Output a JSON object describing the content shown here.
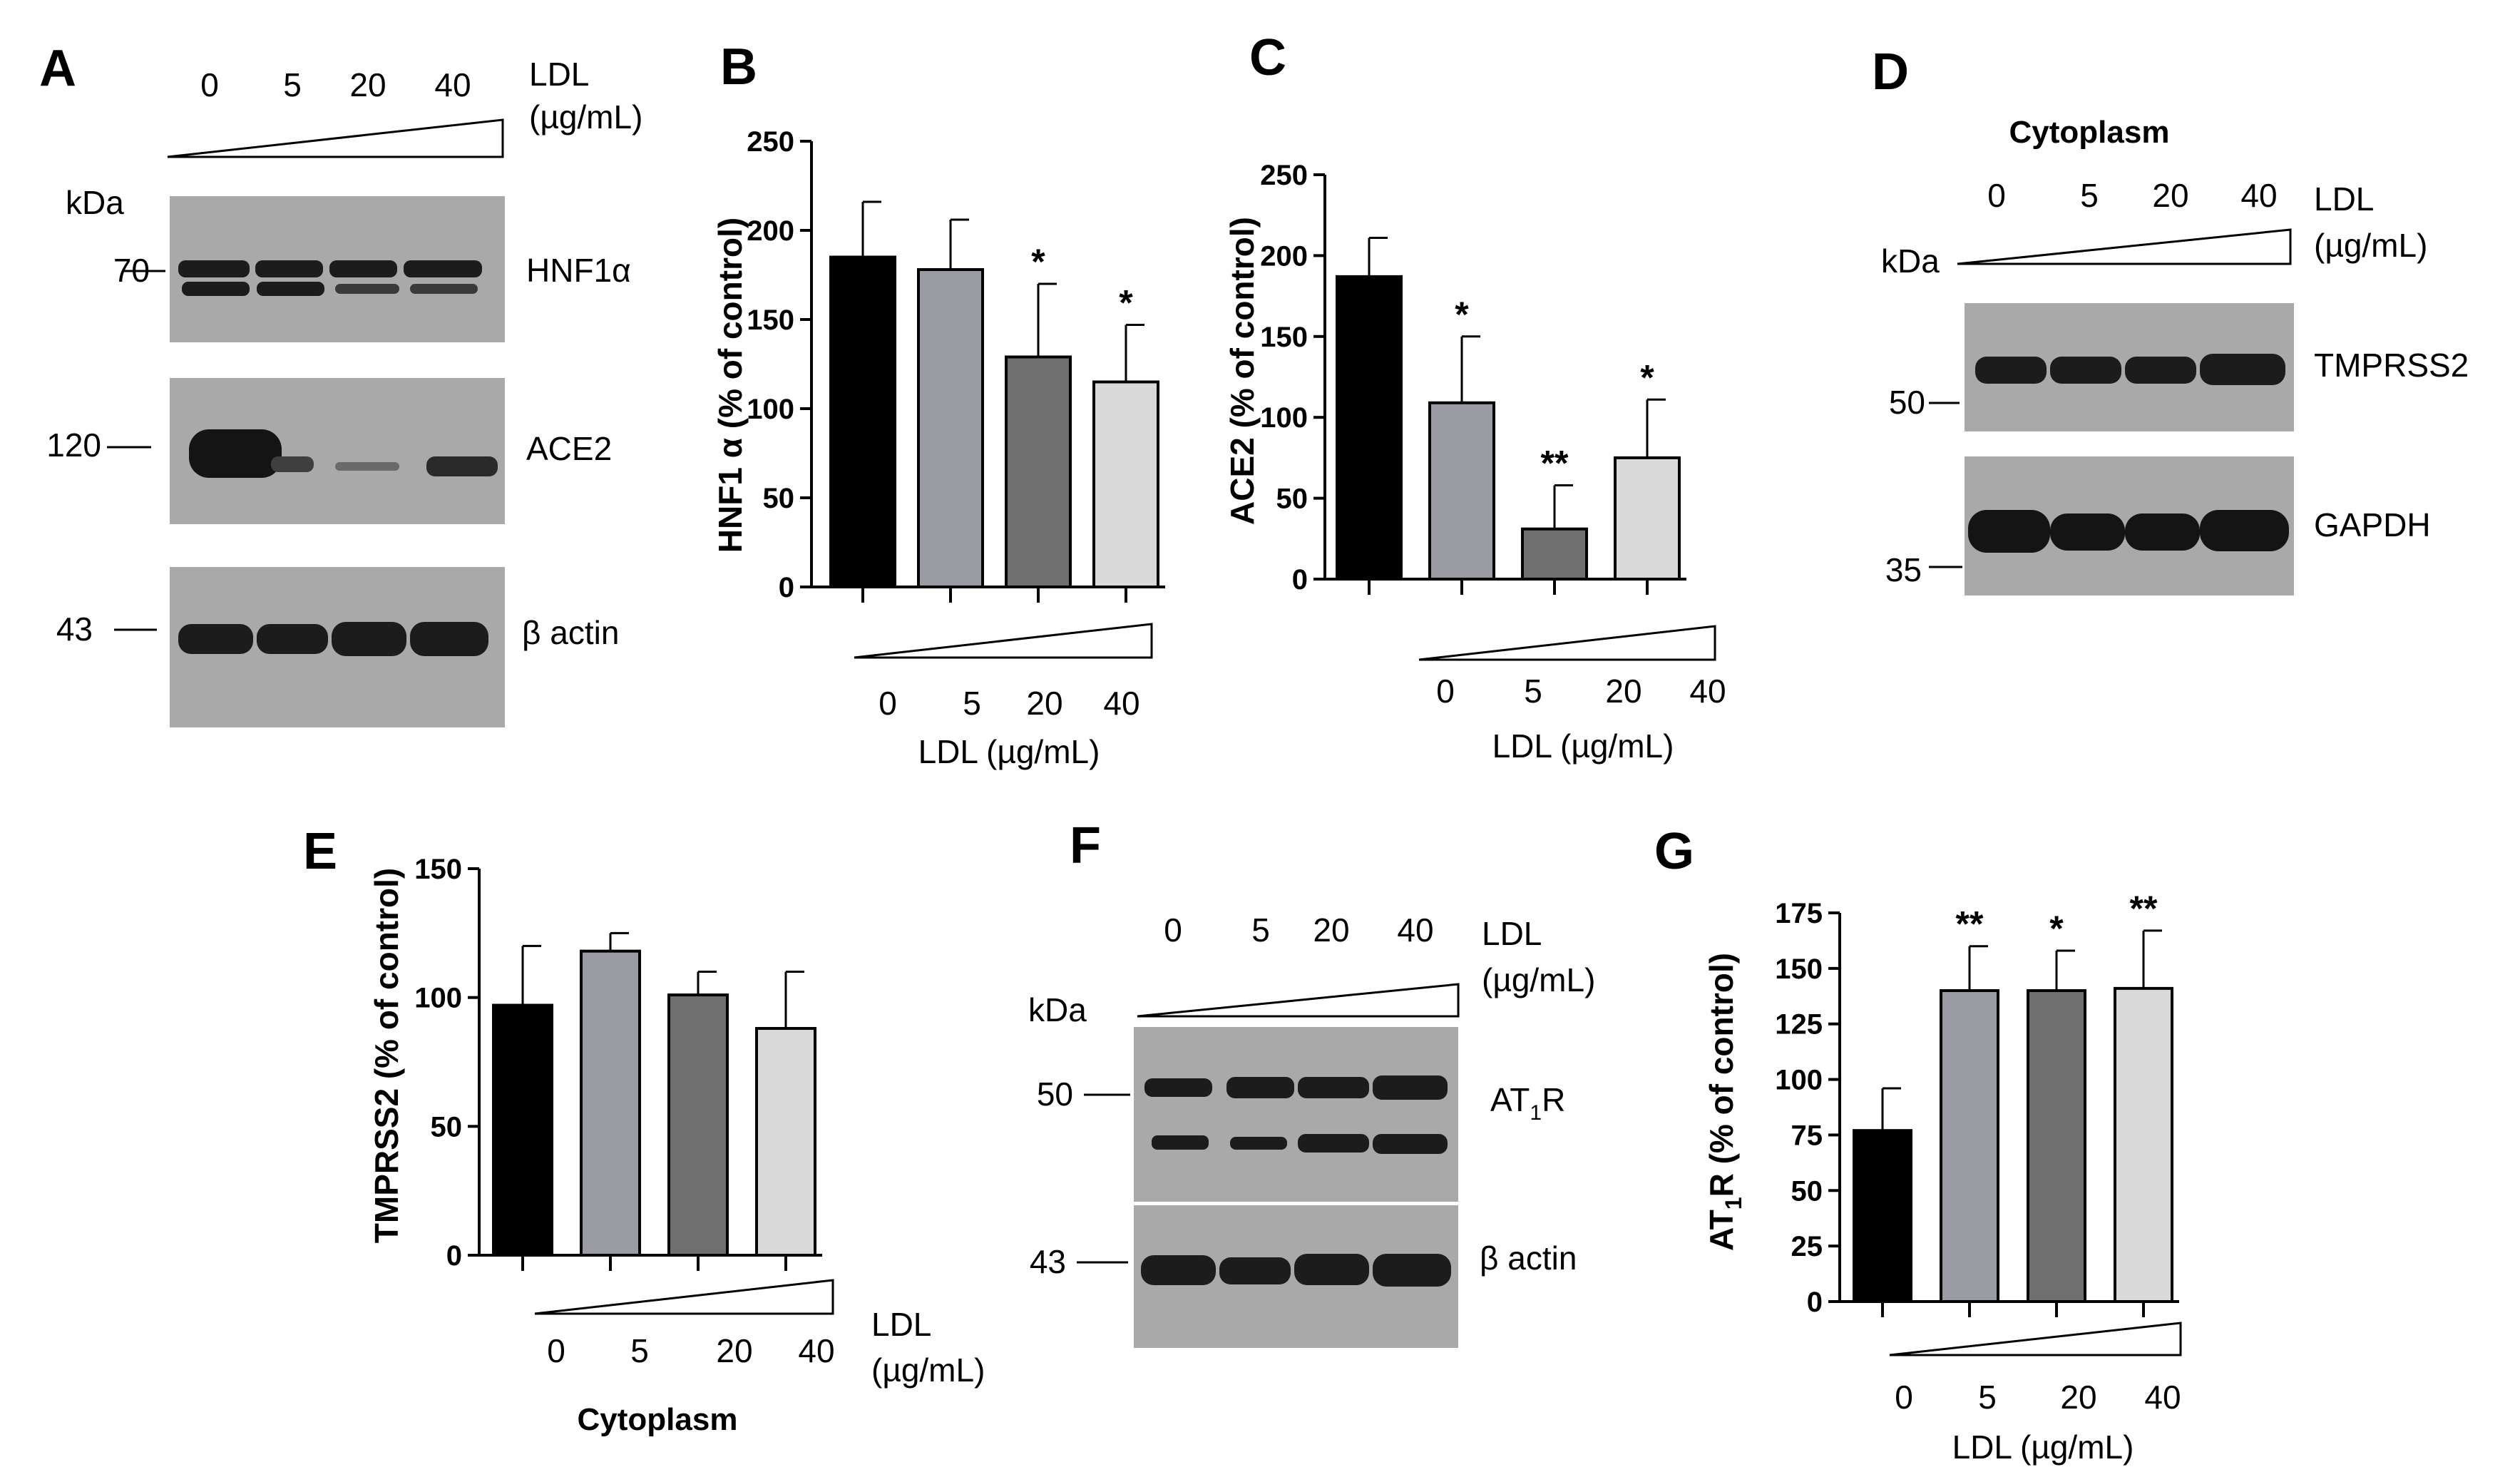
{
  "panel_labels": {
    "A": "A",
    "B": "B",
    "C": "C",
    "D": "D",
    "E": "E",
    "F": "F",
    "G": "G"
  },
  "ldl_label_line1": "LDL",
  "ldl_label_line2": "(µg/mL)",
  "ldl_axis_label": "LDL (µg/mL)",
  "kda": "kDa",
  "cytoplasm": "Cytoplasm",
  "lanes": [
    "0",
    "5",
    "20",
    "40"
  ],
  "blots": {
    "A": {
      "bands": [
        {
          "name": "HNF1α",
          "mw": "70"
        },
        {
          "name": "ACE2",
          "mw": "120"
        },
        {
          "name": "β actin",
          "mw": "43"
        }
      ]
    },
    "D": {
      "bands": [
        {
          "name": "TMPRSS2",
          "mw": "50"
        },
        {
          "name": "GAPDH",
          "mw": "35"
        }
      ]
    },
    "F": {
      "bands": [
        {
          "name": "AT1R",
          "mw": "50",
          "display_prefix": "AT",
          "display_sub": "1",
          "display_suffix": "R"
        },
        {
          "name": "β actin",
          "mw": "43"
        }
      ]
    }
  },
  "colors": {
    "bar_0": "#000000",
    "bar_5": "#9a9aa2",
    "bar_20": "#6f6f6f",
    "bar_40": "#d9d9d9",
    "blot_bg": "#a9a9a9",
    "band": "#1c1c1c"
  },
  "chart_data": [
    {
      "panel": "B",
      "type": "bar",
      "title": "",
      "categories": [
        "0",
        "5",
        "20",
        "40"
      ],
      "values": [
        185,
        178,
        129,
        115
      ],
      "errors": [
        31,
        28,
        41,
        32
      ],
      "significance": [
        "",
        "",
        "*",
        "*"
      ],
      "ylabel_prefix": "HNF1 α",
      "ylabel_suffix": " (% of control)",
      "ylabel": "HNF1 α (% of control)",
      "xlabel": "LDL (µg/mL)",
      "ylim": [
        0,
        250
      ],
      "yticks": [
        0,
        50,
        100,
        150,
        200,
        250
      ]
    },
    {
      "panel": "C",
      "type": "bar",
      "title": "",
      "categories": [
        "0",
        "5",
        "20",
        "40"
      ],
      "values": [
        187,
        109,
        31,
        75
      ],
      "errors": [
        24,
        41,
        27,
        36
      ],
      "significance": [
        "",
        "*",
        "**",
        "*"
      ],
      "ylabel": "ACE2 (% of control)",
      "xlabel": "LDL (µg/mL)",
      "ylim": [
        0,
        250
      ],
      "yticks": [
        0,
        50,
        100,
        150,
        200,
        250
      ]
    },
    {
      "panel": "E",
      "type": "bar",
      "title": "",
      "categories": [
        "0",
        "5",
        "20",
        "40"
      ],
      "values": [
        97,
        118,
        101,
        88
      ],
      "errors": [
        23,
        7,
        9,
        22
      ],
      "significance": [
        "",
        "",
        "",
        ""
      ],
      "ylabel": "TMPRSS2 (% of control)",
      "xlabel": "LDL (µg/mL)",
      "xlabel_line1": "LDL",
      "xlabel_line2": "(µg/mL)",
      "footer": "Cytoplasm",
      "ylim": [
        0,
        150
      ],
      "yticks": [
        0,
        50,
        100,
        150
      ]
    },
    {
      "panel": "G",
      "type": "bar",
      "title": "",
      "categories": [
        "0",
        "5",
        "20",
        "40"
      ],
      "values": [
        77,
        140,
        140,
        141
      ],
      "errors": [
        19,
        20,
        18,
        26
      ],
      "significance": [
        "",
        "**",
        "*",
        "**"
      ],
      "ylabel": "AT1R (% of control)",
      "ylabel_prefix": "AT",
      "ylabel_sub": "1",
      "ylabel_suffix": "R (% of control)",
      "xlabel": "LDL (µg/mL)",
      "ylim": [
        0,
        175
      ],
      "yticks": [
        0,
        25,
        50,
        75,
        100,
        125,
        150,
        175
      ]
    }
  ]
}
